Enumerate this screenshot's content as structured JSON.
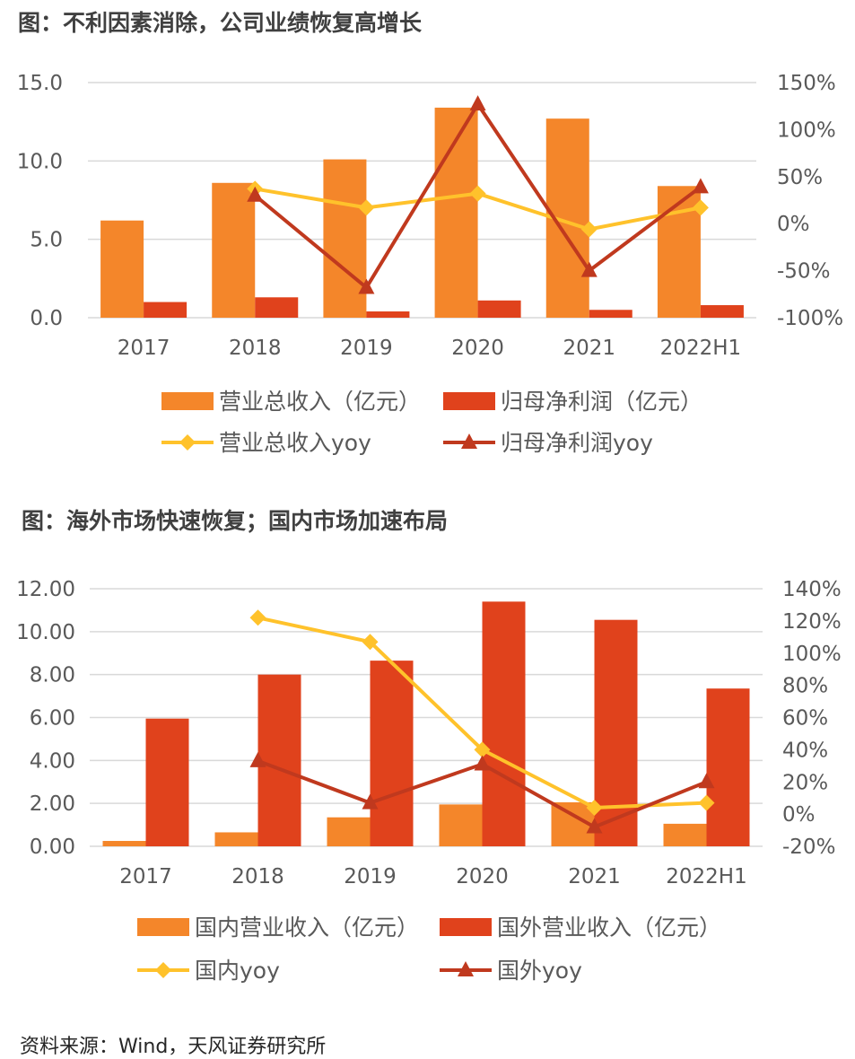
{
  "figure_titles": {
    "fig1": "图：不利因素消除，公司业绩恢复高增长",
    "fig2": "图：海外市场快速恢复；国内市场加速布局"
  },
  "source": "资料来源：Wind，天风证券研究所",
  "colors": {
    "bar_orange": "#F4862A",
    "bar_red": "#E0421C",
    "line_yellow": "#FFC22B",
    "line_darkred": "#C0391E",
    "grid": "#D9D9D9"
  },
  "chart_data": [
    {
      "type": "bar+line",
      "title": "图：不利因素消除，公司业绩恢复高增长",
      "categories": [
        "2017",
        "2018",
        "2019",
        "2020",
        "2021",
        "2022H1"
      ],
      "y_left": {
        "ticks": [
          "0.0",
          "5.0",
          "10.0",
          "15.0"
        ],
        "min": 0,
        "max": 15
      },
      "y_right": {
        "ticks": [
          "-100%",
          "-50%",
          "0%",
          "50%",
          "100%",
          "150%"
        ],
        "min": -100,
        "max": 150
      },
      "grid": true,
      "legend_position": "bottom",
      "bar_series": [
        {
          "name": "营业总收入（亿元）",
          "color": "#F4862A",
          "values": [
            6.2,
            8.6,
            10.1,
            13.4,
            12.7,
            8.4
          ]
        },
        {
          "name": "归母净利润（亿元）",
          "color": "#E0421C",
          "values": [
            1.0,
            1.3,
            0.4,
            1.1,
            0.5,
            0.8
          ]
        }
      ],
      "line_series": [
        {
          "name": "营业总收入yoy",
          "color": "#FFC22B",
          "marker": "diamond",
          "values": [
            null,
            37,
            17,
            32,
            -6,
            17
          ]
        },
        {
          "name": "归母净利润yoy",
          "color": "#C0391E",
          "marker": "triangle",
          "values": [
            null,
            30,
            -68,
            127,
            -50,
            39
          ]
        }
      ]
    },
    {
      "type": "bar+line",
      "title": "图：海外市场快速恢复；国内市场加速布局",
      "categories": [
        "2017",
        "2018",
        "2019",
        "2020",
        "2021",
        "2022H1"
      ],
      "y_left": {
        "ticks": [
          "0.00",
          "2.00",
          "4.00",
          "6.00",
          "8.00",
          "10.00",
          "12.00"
        ],
        "min": 0,
        "max": 12
      },
      "y_right": {
        "ticks": [
          "-20%",
          "0%",
          "20%",
          "40%",
          "60%",
          "80%",
          "100%",
          "120%",
          "140%"
        ],
        "min": -20,
        "max": 140
      },
      "grid": true,
      "legend_position": "bottom",
      "bar_series": [
        {
          "name": "国内营业收入（亿元）",
          "color": "#F4862A",
          "values": [
            0.25,
            0.65,
            1.35,
            1.95,
            2.05,
            1.05
          ]
        },
        {
          "name": "国外营业收入（亿元）",
          "color": "#E0421C",
          "values": [
            5.95,
            8.0,
            8.65,
            11.4,
            10.55,
            7.35
          ]
        }
      ],
      "line_series": [
        {
          "name": "国内yoy",
          "color": "#FFC22B",
          "marker": "diamond",
          "values": [
            null,
            122,
            107,
            40,
            4,
            7
          ]
        },
        {
          "name": "国外yoy",
          "color": "#C0391E",
          "marker": "triangle",
          "values": [
            null,
            33,
            7,
            31,
            -8,
            20
          ]
        }
      ]
    }
  ]
}
